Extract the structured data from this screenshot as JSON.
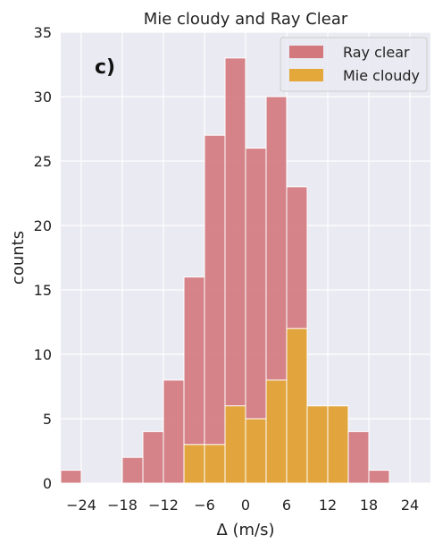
{
  "chart_data": {
    "type": "bar",
    "title": "Mie cloudy and Ray Clear",
    "panel_label": "c)",
    "xlabel": "Δ (m/s)",
    "ylabel": "counts",
    "xlim": [
      -27,
      27
    ],
    "ylim": [
      0,
      35
    ],
    "xticks": [
      -24,
      -18,
      -12,
      -6,
      0,
      6,
      12,
      18,
      24
    ],
    "xtick_labels": [
      "−24",
      "−18",
      "−12",
      "−6",
      "0",
      "6",
      "12",
      "18",
      "24"
    ],
    "yticks": [
      0,
      5,
      10,
      15,
      20,
      25,
      30,
      35
    ],
    "bin_width": 3,
    "legend_position": "top-right",
    "grid": true,
    "series": [
      {
        "name": "Ray clear",
        "color": "#d3787d",
        "bins": [
          {
            "x0": -27,
            "x1": -24,
            "count": 1
          },
          {
            "x0": -24,
            "x1": -21,
            "count": 0
          },
          {
            "x0": -21,
            "x1": -18,
            "count": 0
          },
          {
            "x0": -18,
            "x1": -15,
            "count": 2
          },
          {
            "x0": -15,
            "x1": -12,
            "count": 4
          },
          {
            "x0": -12,
            "x1": -9,
            "count": 8
          },
          {
            "x0": -9,
            "x1": -6,
            "count": 16
          },
          {
            "x0": -6,
            "x1": -3,
            "count": 27
          },
          {
            "x0": -3,
            "x1": 0,
            "count": 33
          },
          {
            "x0": 0,
            "x1": 3,
            "count": 26
          },
          {
            "x0": 3,
            "x1": 6,
            "count": 30
          },
          {
            "x0": 6,
            "x1": 9,
            "count": 23
          },
          {
            "x0": 9,
            "x1": 12,
            "count": 6
          },
          {
            "x0": 12,
            "x1": 15,
            "count": 6
          },
          {
            "x0": 15,
            "x1": 18,
            "count": 4
          },
          {
            "x0": 18,
            "x1": 21,
            "count": 1
          }
        ]
      },
      {
        "name": "Mie cloudy",
        "color": "#e3a73a",
        "bins": [
          {
            "x0": -9,
            "x1": -6,
            "count": 3
          },
          {
            "x0": -6,
            "x1": -3,
            "count": 3
          },
          {
            "x0": -3,
            "x1": 0,
            "count": 6
          },
          {
            "x0": 0,
            "x1": 3,
            "count": 5
          },
          {
            "x0": 3,
            "x1": 6,
            "count": 8
          },
          {
            "x0": 6,
            "x1": 9,
            "count": 12
          },
          {
            "x0": 9,
            "x1": 12,
            "count": 6
          },
          {
            "x0": 12,
            "x1": 15,
            "count": 6
          }
        ]
      }
    ]
  }
}
